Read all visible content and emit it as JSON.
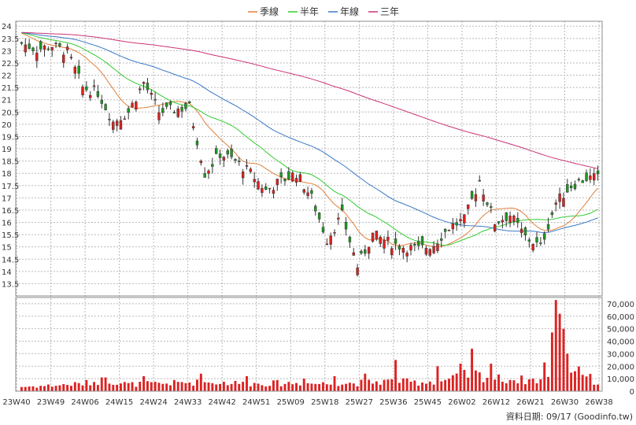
{
  "chart_data": {
    "type": "candlestick",
    "legend": [
      {
        "name": "季線",
        "color": "#e0803a"
      },
      {
        "name": "半年",
        "color": "#33cc33"
      },
      {
        "name": "年線",
        "color": "#3a78c8"
      },
      {
        "name": "三年",
        "color": "#cc3377"
      }
    ],
    "source_label": "資料日期: 09/17 (Goodinfo.tw)",
    "price_axis": {
      "range": [
        13.0,
        24.2
      ],
      "ticks": [
        13.5,
        14,
        14.5,
        15,
        15.5,
        16,
        16.5,
        17,
        17.5,
        18,
        18.5,
        19,
        19.5,
        20,
        20.5,
        21,
        21.5,
        22,
        22.5,
        23,
        23.5,
        24
      ],
      "tick_labels": [
        "13.5",
        "14",
        "14.5",
        "15",
        "15.5",
        "16",
        "16.5",
        "17",
        "17.5",
        "18",
        "18.5",
        "19",
        "19.5",
        "20",
        "20.5",
        "21",
        "21.5",
        "22",
        "22.5",
        "23",
        "23.5",
        "24"
      ]
    },
    "volume_axis": {
      "range": [
        0,
        75000
      ],
      "ticks": [
        0,
        10000,
        20000,
        30000,
        40000,
        50000,
        60000,
        70000
      ],
      "tick_labels": [
        "0",
        "10,000",
        "20,000",
        "30,000",
        "40,000",
        "50,000",
        "60,000",
        "70,000"
      ]
    },
    "x_labels": [
      "23W40",
      "23W49",
      "24W06",
      "24W15",
      "24W24",
      "24W33",
      "24W42",
      "24W51",
      "25W09",
      "25W18",
      "25W27",
      "25W36",
      "25W45",
      "26W02",
      "26W12",
      "26W21",
      "26W30",
      "26W38"
    ],
    "close_anchors": [
      [
        0,
        23.3
      ],
      [
        4,
        23.05
      ],
      [
        8,
        23.2
      ],
      [
        12,
        22.95
      ],
      [
        16,
        21.5
      ],
      [
        20,
        21.3
      ],
      [
        24,
        20.1
      ],
      [
        28,
        20.5
      ],
      [
        32,
        21.7
      ],
      [
        36,
        20.5
      ],
      [
        40,
        20.6
      ],
      [
        44,
        20.7
      ],
      [
        48,
        18.0
      ],
      [
        52,
        18.8
      ],
      [
        56,
        18.5
      ],
      [
        60,
        18.0
      ],
      [
        64,
        17.3
      ],
      [
        68,
        17.7
      ],
      [
        72,
        18.0
      ],
      [
        76,
        17.0
      ],
      [
        80,
        15.3
      ],
      [
        84,
        16.3
      ],
      [
        88,
        14.2
      ],
      [
        92,
        15.5
      ],
      [
        96,
        15.2
      ],
      [
        100,
        15.0
      ],
      [
        104,
        14.9
      ],
      [
        108,
        15.1
      ],
      [
        112,
        15.8
      ],
      [
        116,
        16.1
      ],
      [
        120,
        17.7
      ],
      [
        124,
        16.0
      ],
      [
        128,
        16.3
      ],
      [
        132,
        15.4
      ],
      [
        136,
        15.0
      ],
      [
        140,
        16.8
      ],
      [
        144,
        17.5
      ],
      [
        148,
        17.8
      ],
      [
        151,
        17.8
      ]
    ],
    "volume_anchors": [
      [
        0,
        3500
      ],
      [
        8,
        4500
      ],
      [
        16,
        6000
      ],
      [
        22,
        9000
      ],
      [
        28,
        5500
      ],
      [
        36,
        6000
      ],
      [
        44,
        7000
      ],
      [
        52,
        7000
      ],
      [
        60,
        6000
      ],
      [
        70,
        6500
      ],
      [
        80,
        6000
      ],
      [
        88,
        6500
      ],
      [
        96,
        8000
      ],
      [
        104,
        7000
      ],
      [
        112,
        9000
      ],
      [
        118,
        14000
      ],
      [
        124,
        10000
      ],
      [
        132,
        9000
      ],
      [
        138,
        9000
      ],
      [
        142,
        14000
      ],
      [
        146,
        22000
      ],
      [
        148,
        12000
      ],
      [
        151,
        6000
      ]
    ],
    "volume_spikes": [
      [
        22,
        11000
      ],
      [
        32,
        12000
      ],
      [
        47,
        14000
      ],
      [
        59,
        12000
      ],
      [
        74,
        10000
      ],
      [
        82,
        12000
      ],
      [
        90,
        14000
      ],
      [
        98,
        25000
      ],
      [
        109,
        20000
      ],
      [
        115,
        22000
      ],
      [
        118,
        34000
      ],
      [
        123,
        22000
      ],
      [
        137,
        23000
      ],
      [
        139,
        47000
      ],
      [
        140,
        73000
      ],
      [
        141,
        62000
      ],
      [
        142,
        50000
      ],
      [
        143,
        30000
      ],
      [
        145,
        16000
      ]
    ],
    "ma_periods": {
      "季線": 13,
      "半年": 26,
      "年線": 52,
      "三年": 156
    },
    "ma_warmup_price": 24.2,
    "weeks": 152
  }
}
